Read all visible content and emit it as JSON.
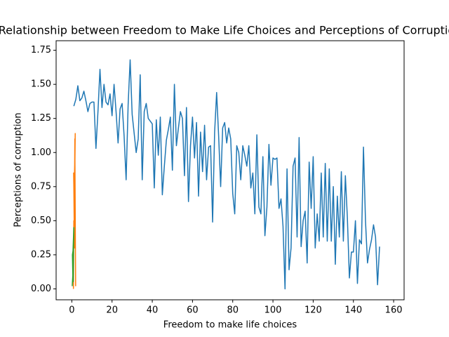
{
  "chart_data": {
    "type": "line",
    "title": "Relationship between Freedom to Make Life Choices and Perceptions of Corruption",
    "xlabel": "Freedom to make life choices",
    "ylabel": "Perceptions of corruption",
    "xlim": [
      -7.8,
      165.2
    ],
    "ylim": [
      -0.08,
      1.82
    ],
    "xticks": [
      0,
      20,
      40,
      60,
      80,
      100,
      120,
      140,
      160
    ],
    "yticks": [
      {
        "value": 0,
        "label": "0.00"
      },
      {
        "value": 0.25,
        "label": "0.25"
      },
      {
        "value": 0.5,
        "label": "0.50"
      },
      {
        "value": 0.75,
        "label": "0.75"
      },
      {
        "value": 1,
        "label": "1.00"
      },
      {
        "value": 1.25,
        "label": "1.25"
      },
      {
        "value": 1.5,
        "label": "1.50"
      },
      {
        "value": 1.75,
        "label": "1.75"
      }
    ],
    "series": [
      {
        "color": "#1f77b4",
        "x": [
          1,
          2,
          3,
          4,
          5,
          6,
          7,
          8,
          9,
          10,
          11,
          12,
          13,
          14,
          15,
          16,
          17,
          18,
          19,
          20,
          21,
          22,
          23,
          24,
          25,
          26,
          27,
          28,
          29,
          30,
          31,
          32,
          33,
          34,
          35,
          36,
          37,
          38,
          39,
          40,
          41,
          42,
          43,
          44,
          45,
          46,
          47,
          48,
          49,
          50,
          51,
          52,
          53,
          54,
          55,
          56,
          57,
          58,
          59,
          60,
          61,
          62,
          63,
          64,
          65,
          66,
          67,
          68,
          69,
          70,
          71,
          72,
          73,
          74,
          75,
          76,
          77,
          78,
          79,
          80,
          81,
          82,
          83,
          84,
          85,
          86,
          87,
          88,
          89,
          90,
          91,
          92,
          93,
          94,
          95,
          96,
          97,
          98,
          99,
          100,
          101,
          102,
          103,
          104,
          105,
          106,
          107,
          108,
          109,
          110,
          111,
          112,
          113,
          114,
          115,
          116,
          117,
          118,
          119,
          120,
          121,
          122,
          123,
          124,
          125,
          126,
          127,
          128,
          129,
          130,
          131,
          132,
          133,
          134,
          135,
          136,
          137,
          138,
          139,
          140,
          141,
          142,
          143,
          144,
          145,
          146,
          147,
          148,
          149,
          150,
          151,
          152,
          153
        ],
        "values": [
          1.34,
          1.39,
          1.49,
          1.38,
          1.4,
          1.45,
          1.38,
          1.3,
          1.36,
          1.37,
          1.37,
          1.03,
          1.3,
          1.61,
          1.33,
          1.5,
          1.37,
          1.35,
          1.43,
          1.27,
          1.5,
          1.3,
          1.07,
          1.32,
          1.36,
          1.12,
          0.8,
          1.35,
          1.68,
          1.28,
          1.14,
          1.0,
          1.1,
          1.57,
          0.8,
          1.3,
          1.36,
          1.25,
          1.23,
          1.21,
          0.74,
          1.24,
          0.98,
          1.26,
          0.69,
          0.9,
          1.09,
          1.17,
          1.26,
          0.87,
          1.5,
          1.05,
          1.18,
          1.3,
          1.25,
          0.83,
          1.33,
          0.64,
          1.05,
          1.26,
          0.96,
          1.22,
          0.68,
          1.15,
          0.86,
          1.2,
          0.8,
          1.04,
          1.05,
          0.49,
          1.15,
          1.44,
          1.12,
          0.75,
          1.18,
          1.22,
          1.07,
          1.18,
          1.1,
          0.7,
          0.55,
          1.05,
          1.0,
          0.8,
          1.05,
          0.98,
          0.9,
          1.05,
          0.74,
          0.85,
          0.55,
          1.13,
          0.6,
          0.55,
          0.97,
          0.39,
          0.6,
          1.06,
          0.76,
          0.96,
          0.95,
          0.96,
          0.59,
          0.66,
          0.46,
          0.0,
          0.88,
          0.14,
          0.3,
          0.9,
          0.96,
          0.38,
          1.11,
          0.31,
          0.5,
          0.57,
          0.19,
          0.93,
          0.59,
          0.97,
          0.3,
          0.55,
          0.35,
          0.85,
          0.38,
          0.92,
          0.35,
          0.88,
          0.35,
          0.75,
          0.18,
          0.68,
          0.38,
          0.86,
          0.35,
          0.83,
          0.52,
          0.08,
          0.27,
          0.27,
          0.5,
          0.04,
          0.36,
          0.33,
          1.04,
          0.5,
          0.19,
          0.29,
          0.36,
          0.47,
          0.38,
          0.03,
          0.31
        ]
      },
      {
        "color": "#ff7f0e",
        "x": [
          0.8,
          1.0,
          1.3,
          1.0,
          1.5,
          0.9,
          1.2,
          1.6,
          1.1,
          1.4,
          1.7,
          1.2,
          1.5,
          1.9
        ],
        "values": [
          0.0,
          0.5,
          0.3,
          0.75,
          0.6,
          0.85,
          0.55,
          1.0,
          0.7,
          0.9,
          1.14,
          0.45,
          1.1,
          0.02
        ]
      },
      {
        "color": "#2ca02c",
        "x": [
          0.2,
          0.5,
          0.3,
          0.8,
          0.6,
          1.0,
          0.4,
          0.9,
          0.7
        ],
        "values": [
          0.02,
          0.1,
          0.25,
          0.3,
          0.12,
          0.45,
          0.2,
          0.4,
          0.05
        ]
      }
    ]
  }
}
